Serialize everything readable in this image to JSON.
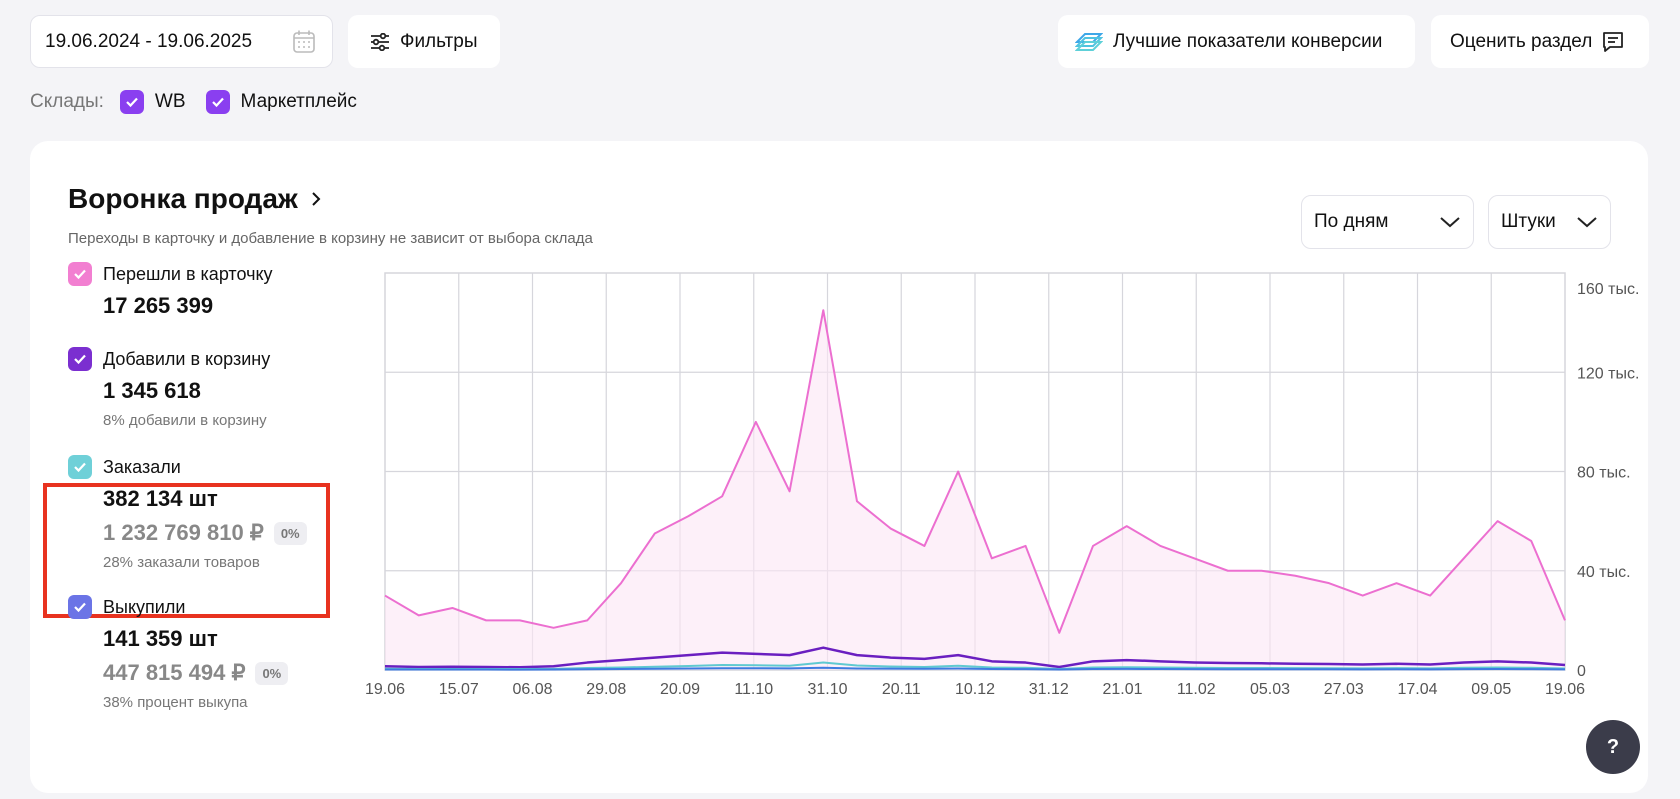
{
  "date_range": "19.06.2024 - 19.06.2025",
  "filters_label": "Фильтры",
  "best_conversion_label": "Лучшие показатели конверсии",
  "rate_section_label": "Оценить раздел",
  "warehouses": {
    "label": "Склады:",
    "items": [
      {
        "label": "WB",
        "checked": true
      },
      {
        "label": "Маркетплейс",
        "checked": true
      }
    ]
  },
  "funnel": {
    "title": "Воронка продаж",
    "subtitle": "Переходы в карточку и добавление в корзину не зависит от выбора склада",
    "period_select": "По дням",
    "units_select": "Штуки",
    "metrics": [
      {
        "label": "Перешли в карточку",
        "value": "17 265 399",
        "color": "#f27fd1"
      },
      {
        "label": "Добавили в корзину",
        "value": "1 345 618",
        "note": "8% добавили в корзину",
        "color": "#7b2fd0"
      },
      {
        "label": "Заказали",
        "value": "382 134 шт",
        "money": "1 232 769 810 ₽",
        "badge": "0%",
        "note": "28% заказали товаров",
        "color": "#6fd0d8"
      },
      {
        "label": "Выкупили",
        "value": "141 359 шт",
        "money": "447 815 494 ₽",
        "badge": "0%",
        "note": "38% процент выкупа",
        "color": "#6b74e6"
      }
    ]
  },
  "chart_data": {
    "type": "area",
    "x_ticks": [
      "19.06",
      "15.07",
      "06.08",
      "29.08",
      "20.09",
      "11.10",
      "31.10",
      "20.11",
      "10.12",
      "31.12",
      "21.01",
      "11.02",
      "05.03",
      "27.03",
      "17.04",
      "09.05",
      "19.06"
    ],
    "y_ticks": [
      "0",
      "40 тыс.",
      "80 тыс.",
      "120 тыс.",
      "160 тыс."
    ],
    "ylim": [
      0,
      160000
    ],
    "grid": true,
    "series": [
      {
        "name": "Перешли в карточку",
        "color": "#ec6fd0",
        "values": [
          30000,
          22000,
          25000,
          20000,
          20000,
          17000,
          20000,
          35000,
          55000,
          62000,
          70000,
          100000,
          72000,
          145000,
          68000,
          57000,
          50000,
          80000,
          45000,
          50000,
          15000,
          50000,
          58000,
          50000,
          45000,
          40000,
          40000,
          38000,
          35000,
          30000,
          35000,
          30000,
          45000,
          60000,
          52000,
          20000
        ]
      },
      {
        "name": "Добавили в корзину",
        "color": "#6a1fc0",
        "values": [
          1500,
          1200,
          1300,
          1200,
          1100,
          1500,
          3000,
          4000,
          5000,
          6000,
          7000,
          6500,
          6000,
          9000,
          6000,
          5000,
          4500,
          6000,
          3500,
          3000,
          1200,
          3500,
          4000,
          3500,
          3000,
          2800,
          2700,
          2500,
          2400,
          2200,
          2500,
          2200,
          3000,
          3500,
          3000,
          2000
        ]
      },
      {
        "name": "Заказали",
        "color": "#5fc9d1",
        "values": [
          500,
          400,
          400,
          400,
          400,
          450,
          800,
          1000,
          1300,
          1600,
          2000,
          1900,
          1700,
          3000,
          1800,
          1400,
          1200,
          1700,
          1000,
          900,
          400,
          1000,
          1100,
          1000,
          900,
          800,
          800,
          750,
          700,
          650,
          750,
          650,
          900,
          1000,
          900,
          600
        ]
      },
      {
        "name": "Выкупили",
        "color": "#3e7be0",
        "values": [
          200,
          200,
          200,
          180,
          170,
          200,
          300,
          400,
          500,
          600,
          700,
          700,
          650,
          900,
          600,
          550,
          500,
          600,
          400,
          350,
          200,
          400,
          450,
          400,
          350,
          300,
          300,
          300,
          280,
          260,
          300,
          260,
          350,
          400,
          350,
          250
        ]
      }
    ]
  },
  "help_label": "?"
}
